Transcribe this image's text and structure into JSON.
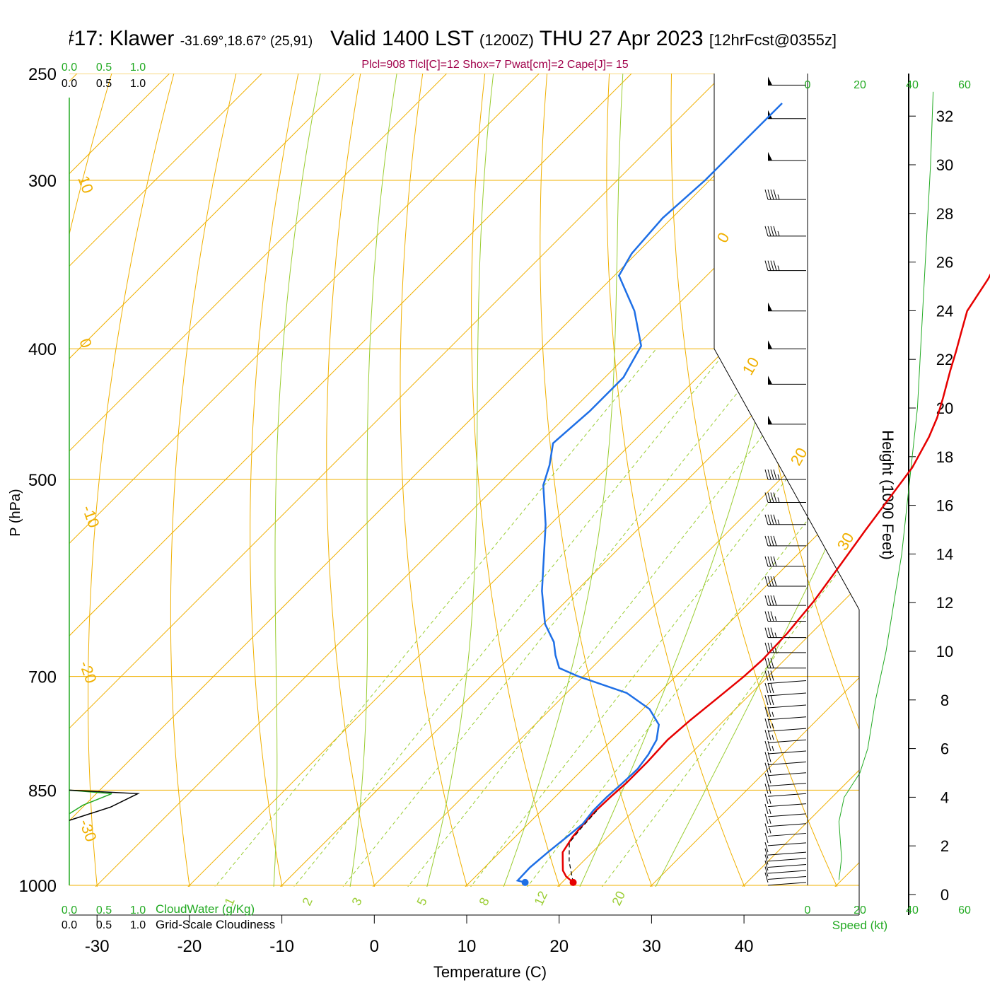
{
  "header": {
    "station": "#17: Klawer",
    "coords": "-31.69°,18.67° (25,91)",
    "valid": "Valid 1400 LST",
    "utc": "(1200Z)",
    "date": "THU 27 Apr 2023",
    "forecast": "[12hrFcst@0355z]",
    "indices": "Plcl=908 Tlcl[C]=12 Shox=7 Pwat[cm]=2 Cape[J]= 15"
  },
  "labels": {
    "pressure_axis": "P (hPa)",
    "temperature_axis": "Temperature (C)",
    "height_axis": "Height (1000 Feet)",
    "cloudwater": "CloudWater (g/Kg)",
    "cloudiness": "Grid-Scale Cloudiness",
    "speed": "Speed (kt)",
    "cloud_ticks": [
      "0.0",
      "0.5",
      "1.0"
    ],
    "speed_ticks": [
      "0",
      "20",
      "40",
      "60"
    ]
  },
  "colors": {
    "temperature": "#e60000",
    "dewpoint": "#1e6fe6",
    "isotherm": "#f0b000",
    "dry_adiabat": "#f0b000",
    "moist_adiabat": "#9acd32",
    "mixing_ratio": "#9acd32",
    "cloud_water": "#22aa22",
    "subtitle": "#a0004a"
  },
  "chart_data": {
    "type": "line",
    "title": "#17: Klawer Valid 1400 LST (1200Z) THU 27 Apr 2023",
    "xlabel": "Temperature (C)",
    "ylabel": "P (hPa)",
    "xlim": [
      -33,
      47
    ],
    "ylim": [
      1000,
      250
    ],
    "y_scale": "log",
    "skew": true,
    "x_ticks": [
      -30,
      -20,
      -10,
      0,
      10,
      20,
      30,
      40
    ],
    "y_ticks": [
      250,
      300,
      400,
      500,
      700,
      850,
      1000
    ],
    "series": [
      {
        "name": "Temperature",
        "points": [
          [
            21.2,
            995
          ],
          [
            19.8,
            985
          ],
          [
            18.8,
            975
          ],
          [
            17.8,
            960
          ],
          [
            16.8,
            945
          ],
          [
            16.2,
            920
          ],
          [
            16.0,
            900
          ],
          [
            15.9,
            880
          ],
          [
            16.0,
            860
          ],
          [
            16.2,
            840
          ],
          [
            16.2,
            810
          ],
          [
            16.0,
            780
          ],
          [
            16.3,
            755
          ],
          [
            16.9,
            725
          ],
          [
            17.4,
            700
          ],
          [
            17.6,
            680
          ],
          [
            17.4,
            650
          ],
          [
            16.8,
            615
          ],
          [
            15.8,
            580
          ],
          [
            14.7,
            545
          ],
          [
            13.8,
            515
          ],
          [
            13.0,
            490
          ],
          [
            11.5,
            465
          ],
          [
            10.3,
            450
          ],
          [
            8.8,
            435
          ],
          [
            6.6,
            415
          ],
          [
            5.2,
            402
          ],
          [
            3.8,
            390
          ],
          [
            2.0,
            375
          ],
          [
            0.8,
            355
          ],
          [
            -0.5,
            340
          ],
          [
            -2.0,
            325
          ],
          [
            -4.0,
            310
          ],
          [
            -6.0,
            295
          ],
          [
            -8.0,
            282
          ],
          [
            -10.0,
            270
          ],
          [
            -12.0,
            260
          ]
        ]
      },
      {
        "name": "Dewpoint",
        "points": [
          [
            16.0,
            995
          ],
          [
            15.0,
            992
          ],
          [
            14.9,
            970
          ],
          [
            15.2,
            945
          ],
          [
            15.6,
            920
          ],
          [
            15.9,
            900
          ],
          [
            15.6,
            880
          ],
          [
            15.6,
            860
          ],
          [
            15.8,
            840
          ],
          [
            15.9,
            820
          ],
          [
            15.5,
            800
          ],
          [
            14.8,
            780
          ],
          [
            13.4,
            760
          ],
          [
            10.7,
            740
          ],
          [
            6.5,
            720
          ],
          [
            -0.5,
            700
          ],
          [
            -3.5,
            690
          ],
          [
            -5.3,
            675
          ],
          [
            -6.9,
            660
          ],
          [
            -9.8,
            640
          ],
          [
            -13.7,
            605
          ],
          [
            -20.5,
            540
          ],
          [
            -25.0,
            505
          ],
          [
            -26.5,
            488
          ],
          [
            -28.5,
            470
          ],
          [
            -28.0,
            445
          ],
          [
            -28.0,
            420
          ],
          [
            -29.5,
            398
          ],
          [
            -34.0,
            375
          ],
          [
            -39.5,
            353
          ],
          [
            -40.5,
            340
          ],
          [
            -41.0,
            320
          ],
          [
            -40.5,
            300
          ],
          [
            -40.5,
            280
          ],
          [
            -40.5,
            263
          ]
        ]
      }
    ],
    "parcel": [
      [
        21.2,
        995
      ],
      [
        18.5,
        960
      ],
      [
        16.5,
        930
      ],
      [
        16.2,
        908
      ],
      [
        16.0,
        880
      ]
    ],
    "surface_markers": [
      {
        "name": "Temperature",
        "x": 21.2,
        "p": 995
      },
      {
        "name": "Dewpoint",
        "x": 16.0,
        "p": 995
      }
    ],
    "isotherm_labels": [
      "10",
      "0",
      "-10",
      "-20",
      "-30",
      "0",
      "10",
      "20",
      "30"
    ],
    "mixing_ratio_labels": [
      "1",
      "2",
      "3",
      "5",
      "8",
      "12",
      "20"
    ],
    "height_axis": {
      "label": "Height (1000 Feet)",
      "ticks": [
        0,
        2,
        4,
        6,
        8,
        10,
        12,
        14,
        16,
        18,
        20,
        22,
        24,
        26,
        28,
        30,
        32
      ]
    },
    "wind_speed_profile": {
      "xlabel": "Speed (kt)",
      "x_ticks": [
        0,
        20,
        40,
        60
      ],
      "points": [
        [
          12,
          0.6
        ],
        [
          13,
          1.5
        ],
        [
          12,
          3
        ],
        [
          14,
          4
        ],
        [
          20,
          5
        ],
        [
          23,
          6
        ],
        [
          26,
          8
        ],
        [
          30,
          10
        ],
        [
          33,
          12
        ],
        [
          36,
          14
        ],
        [
          38,
          16
        ],
        [
          40,
          18
        ],
        [
          42,
          20
        ],
        [
          43,
          22
        ],
        [
          44,
          24
        ],
        [
          45,
          26
        ],
        [
          46,
          28
        ],
        [
          47,
          30
        ],
        [
          48,
          33
        ]
      ]
    },
    "cloud_profile": {
      "xlabel": "CloudWater (g/Kg)",
      "x_ticks": [
        0.0,
        0.5,
        1.0
      ],
      "points": [
        [
          0,
          850
        ],
        [
          0.62,
          855
        ],
        [
          0.2,
          872
        ],
        [
          0,
          885
        ]
      ]
    },
    "cloudiness_profile": {
      "xlabel": "Grid-Scale Cloudiness",
      "x_ticks": [
        0.0,
        0.5,
        1.0
      ],
      "points": [
        [
          0,
          850
        ],
        [
          1.0,
          855
        ],
        [
          0.6,
          875
        ],
        [
          0,
          895
        ]
      ]
    },
    "wind_barbs": [
      {
        "p": 995,
        "speed_kt": 10
      },
      {
        "p": 985,
        "speed_kt": 10
      },
      {
        "p": 975,
        "speed_kt": 10
      },
      {
        "p": 965,
        "speed_kt": 10
      },
      {
        "p": 955,
        "speed_kt": 10
      },
      {
        "p": 945,
        "speed_kt": 10
      },
      {
        "p": 930,
        "speed_kt": 10
      },
      {
        "p": 915,
        "speed_kt": 15
      },
      {
        "p": 900,
        "speed_kt": 15
      },
      {
        "p": 885,
        "speed_kt": 15
      },
      {
        "p": 870,
        "speed_kt": 15
      },
      {
        "p": 855,
        "speed_kt": 20
      },
      {
        "p": 840,
        "speed_kt": 20
      },
      {
        "p": 825,
        "speed_kt": 20
      },
      {
        "p": 810,
        "speed_kt": 20
      },
      {
        "p": 795,
        "speed_kt": 25
      },
      {
        "p": 780,
        "speed_kt": 25
      },
      {
        "p": 765,
        "speed_kt": 25
      },
      {
        "p": 750,
        "speed_kt": 25
      },
      {
        "p": 735,
        "speed_kt": 30
      },
      {
        "p": 720,
        "speed_kt": 30
      },
      {
        "p": 705,
        "speed_kt": 30
      },
      {
        "p": 690,
        "speed_kt": 30
      },
      {
        "p": 672,
        "speed_kt": 35
      },
      {
        "p": 655,
        "speed_kt": 35
      },
      {
        "p": 637,
        "speed_kt": 35
      },
      {
        "p": 620,
        "speed_kt": 40
      },
      {
        "p": 600,
        "speed_kt": 40
      },
      {
        "p": 580,
        "speed_kt": 40
      },
      {
        "p": 560,
        "speed_kt": 40
      },
      {
        "p": 540,
        "speed_kt": 45
      },
      {
        "p": 520,
        "speed_kt": 45
      },
      {
        "p": 500,
        "speed_kt": 45
      },
      {
        "p": 455,
        "speed_kt": 50
      },
      {
        "p": 425,
        "speed_kt": 50
      },
      {
        "p": 400,
        "speed_kt": 50
      },
      {
        "p": 375,
        "speed_kt": 50
      },
      {
        "p": 350,
        "speed_kt": 45
      },
      {
        "p": 330,
        "speed_kt": 45
      },
      {
        "p": 310,
        "speed_kt": 45
      },
      {
        "p": 290,
        "speed_kt": 50
      },
      {
        "p": 270,
        "speed_kt": 50
      },
      {
        "p": 255,
        "speed_kt": 50
      }
    ]
  }
}
